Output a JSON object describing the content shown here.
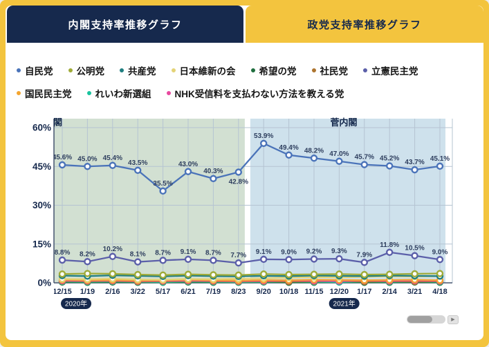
{
  "tabs": [
    {
      "label": "内閣支持率推移グラフ",
      "active": false
    },
    {
      "label": "政党支持率推移グラフ",
      "active": true
    }
  ],
  "scrollbar": {
    "arrow_glyph": "▶"
  },
  "chart_data": {
    "type": "line",
    "x_labels": [
      "12/15",
      "1/19",
      "2/16",
      "3/22",
      "5/17",
      "6/21",
      "7/19",
      "8/23",
      "9/20",
      "10/18",
      "11/15",
      "12/20",
      "1/17",
      "2/14",
      "3/21",
      "4/18"
    ],
    "y_ticks": [
      0,
      15,
      30,
      45,
      60
    ],
    "ylim": [
      0,
      60
    ],
    "y_tick_suffix": "%",
    "grid": true,
    "regions": [
      {
        "label": "安倍内閣",
        "fill": "#9cba9c",
        "start_index": -0.33,
        "end_index": 7.25,
        "label_x_index": -1.43,
        "label_anchor": "start"
      },
      {
        "label": "菅内閣",
        "fill": "#92bcd4",
        "start_index": 7.47,
        "end_index": 15.22,
        "label_x_index": 11.18,
        "label_anchor": "middle"
      }
    ],
    "year_badges": [
      {
        "label": "2020年",
        "x_index": 0.55
      },
      {
        "label": "2021年",
        "x_index": 11.2
      }
    ],
    "series": [
      {
        "name": "自民党",
        "color": "#4a73b9",
        "show_labels": true,
        "values": [
          45.6,
          45.0,
          45.4,
          43.5,
          35.5,
          43.0,
          40.3,
          42.8,
          53.9,
          49.4,
          48.2,
          47.0,
          45.7,
          45.2,
          43.7,
          45.1
        ],
        "label_dy_overrides": {
          "7": 17
        }
      },
      {
        "name": "公明党",
        "color": "#9fab38",
        "show_labels": false,
        "values": [
          3.4,
          3.6,
          3.5,
          3.2,
          3.0,
          3.3,
          3.1,
          3.0,
          3.4,
          3.2,
          3.3,
          3.4,
          3.2,
          3.3,
          3.5,
          3.6
        ]
      },
      {
        "name": "共産党",
        "color": "#1f7e80",
        "show_labels": false,
        "values": [
          2.8,
          2.6,
          2.9,
          2.7,
          2.5,
          2.8,
          2.6,
          2.5,
          2.7,
          2.6,
          2.8,
          2.7,
          2.6,
          2.8,
          2.7,
          2.6
        ]
      },
      {
        "name": "日本維新の会",
        "color": "#e4d377",
        "show_labels": false,
        "values": [
          1.5,
          1.4,
          1.6,
          1.3,
          1.2,
          1.5,
          1.4,
          1.6,
          1.8,
          2.0,
          2.2,
          2.1,
          2.3,
          2.5,
          2.4,
          2.6
        ]
      },
      {
        "name": "希望の党",
        "color": "#1f6e3e",
        "show_labels": false,
        "values": [
          0.3,
          0.2,
          0.3,
          0.2,
          0.2,
          0.3,
          0.2,
          0.2,
          0.3,
          0.2,
          0.2,
          0.3,
          0.2,
          0.2,
          0.3,
          0.2
        ]
      },
      {
        "name": "社民党",
        "color": "#ad742f",
        "show_labels": false,
        "values": [
          0.7,
          0.6,
          0.7,
          0.5,
          0.6,
          0.7,
          0.6,
          0.5,
          0.6,
          0.5,
          0.6,
          0.7,
          0.5,
          0.6,
          0.5,
          0.6
        ]
      },
      {
        "name": "立憲民主党",
        "color": "#5b5fa9",
        "show_labels": true,
        "values": [
          8.8,
          8.2,
          10.2,
          8.1,
          8.7,
          9.1,
          8.7,
          7.7,
          9.1,
          9.0,
          9.2,
          9.3,
          7.9,
          11.8,
          10.5,
          9.0
        ]
      },
      {
        "name": "国民民主党",
        "color": "#f4a52f",
        "show_labels": false,
        "values": [
          1.2,
          1.0,
          1.1,
          0.9,
          1.0,
          1.2,
          1.0,
          0.9,
          1.1,
          1.0,
          1.2,
          1.1,
          1.0,
          1.1,
          1.2,
          1.0
        ]
      },
      {
        "name": "れいわ新選組",
        "color": "#18c39e",
        "show_labels": false,
        "values": [
          0.5,
          0.4,
          0.5,
          0.4,
          0.3,
          0.5,
          0.4,
          0.3,
          0.4,
          0.5,
          0.4,
          0.3,
          0.5,
          0.4,
          0.5,
          0.4
        ]
      },
      {
        "name": "NHK受信料を支払わない方法を教える党",
        "color": "#e8489f",
        "show_labels": false,
        "values": [
          0.9,
          0.8,
          0.9,
          0.7,
          0.8,
          0.9,
          0.8,
          0.7,
          0.8,
          0.9,
          0.8,
          0.7,
          0.9,
          0.8,
          0.9,
          0.8
        ]
      }
    ]
  }
}
